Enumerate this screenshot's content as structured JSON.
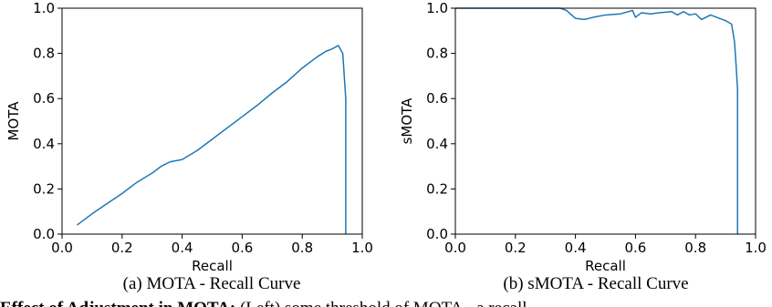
{
  "chart_data": [
    {
      "type": "line",
      "caption": "(a) MOTA - Recall Curve",
      "xlabel": "Recall",
      "ylabel": "MOTA",
      "xlim": [
        0.0,
        1.0
      ],
      "ylim": [
        0.0,
        1.0
      ],
      "xticks": [
        "0.0",
        "0.2",
        "0.4",
        "0.6",
        "0.8",
        "1.0"
      ],
      "yticks": [
        "0.0",
        "0.2",
        "0.4",
        "0.6",
        "0.8",
        "1.0"
      ],
      "grid": false,
      "line_color": "#1f77b4",
      "series": [
        {
          "x": [
            0.05,
            0.1,
            0.15,
            0.2,
            0.25,
            0.3,
            0.33,
            0.36,
            0.4,
            0.45,
            0.5,
            0.55,
            0.6,
            0.65,
            0.7,
            0.75,
            0.8,
            0.85,
            0.88,
            0.9,
            0.92,
            0.935,
            0.94,
            0.945,
            0.945
          ],
          "y": [
            0.04,
            0.09,
            0.135,
            0.18,
            0.23,
            0.27,
            0.3,
            0.32,
            0.33,
            0.37,
            0.42,
            0.47,
            0.52,
            0.57,
            0.625,
            0.675,
            0.735,
            0.785,
            0.81,
            0.82,
            0.835,
            0.8,
            0.7,
            0.6,
            0.0
          ]
        }
      ]
    },
    {
      "type": "line",
      "caption": "(b) sMOTA - Recall Curve",
      "xlabel": "Recall",
      "ylabel": "sMOTA",
      "xlim": [
        0.0,
        1.0
      ],
      "ylim": [
        0.0,
        1.0
      ],
      "xticks": [
        "0.0",
        "0.2",
        "0.4",
        "0.6",
        "0.8",
        "1.0"
      ],
      "yticks": [
        "0.0",
        "0.2",
        "0.4",
        "0.6",
        "0.8",
        "1.0"
      ],
      "grid": false,
      "line_color": "#1f77b4",
      "series": [
        {
          "x": [
            0.0,
            0.35,
            0.37,
            0.4,
            0.43,
            0.46,
            0.5,
            0.55,
            0.59,
            0.6,
            0.62,
            0.65,
            0.68,
            0.72,
            0.74,
            0.76,
            0.78,
            0.8,
            0.82,
            0.85,
            0.88,
            0.9,
            0.92,
            0.93,
            0.935,
            0.94,
            0.94
          ],
          "y": [
            1.0,
            1.0,
            0.99,
            0.955,
            0.95,
            0.96,
            0.97,
            0.975,
            0.99,
            0.96,
            0.98,
            0.975,
            0.98,
            0.985,
            0.97,
            0.985,
            0.97,
            0.975,
            0.95,
            0.97,
            0.955,
            0.945,
            0.93,
            0.85,
            0.75,
            0.64,
            0.0
          ]
        }
      ]
    }
  ],
  "footer_text": {
    "bold_part": "Effect of Adjustment in MOTA:",
    "rest": " (Left) some threshold of MOTA - a recall"
  }
}
